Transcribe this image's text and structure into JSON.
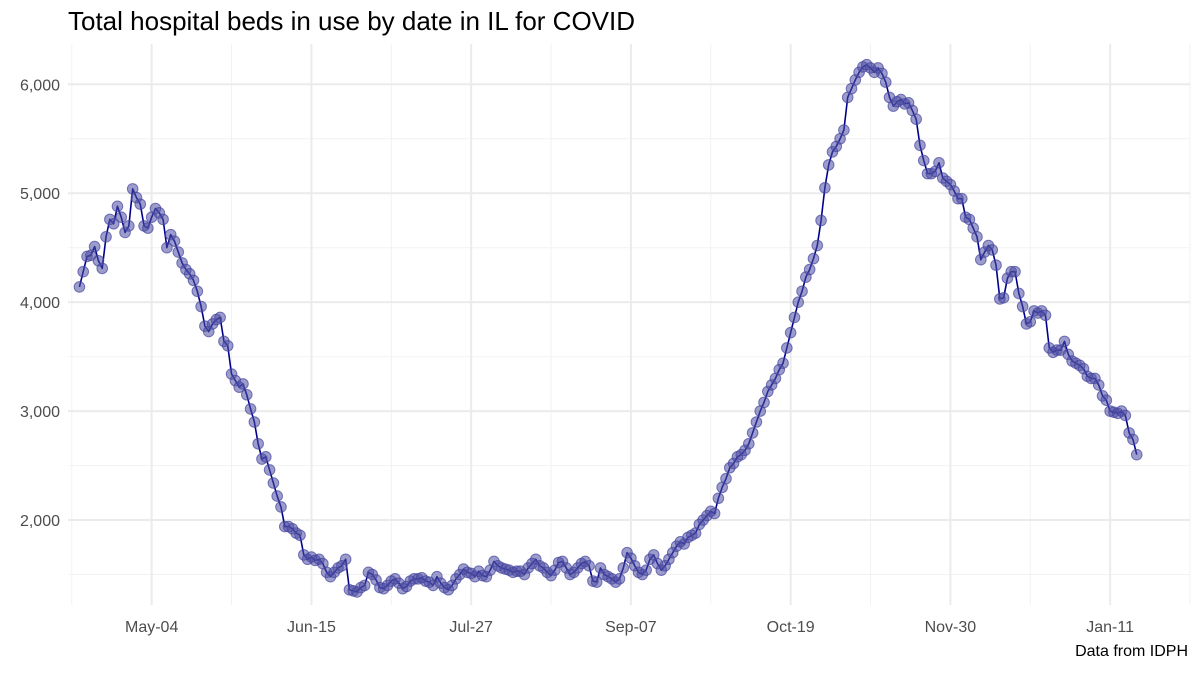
{
  "chart_data": {
    "type": "line",
    "title": "Total hospital beds in use by date in IL for COVID",
    "caption": "Data from IDPH",
    "xlabel": "",
    "ylabel": "",
    "x_start": "2020-04-15",
    "x_ticks": [
      {
        "date": "2020-05-04",
        "label": "May-04"
      },
      {
        "date": "2020-06-15",
        "label": "Jun-15"
      },
      {
        "date": "2020-07-27",
        "label": "Jul-27"
      },
      {
        "date": "2020-09-07",
        "label": "Sep-07"
      },
      {
        "date": "2020-10-19",
        "label": "Oct-19"
      },
      {
        "date": "2020-11-30",
        "label": "Nov-30"
      },
      {
        "date": "2021-01-11",
        "label": "Jan-11"
      }
    ],
    "y_ticks": [
      {
        "value": 2000,
        "label": "2,000"
      },
      {
        "value": 3000,
        "label": "3,000"
      },
      {
        "value": 4000,
        "label": "4,000"
      },
      {
        "value": 5000,
        "label": "5,000"
      },
      {
        "value": 6000,
        "label": "6,000"
      }
    ],
    "xlim": [
      "2020-04-12",
      "2021-02-01"
    ],
    "ylim": [
      1220,
      6370
    ],
    "grid": true,
    "series": [
      {
        "values": [
          4140,
          4280,
          4420,
          4430,
          4510,
          4380,
          4310,
          4600,
          4760,
          4720,
          4880,
          4780,
          4640,
          4700,
          5040,
          4960,
          4900,
          4700,
          4680,
          4780,
          4860,
          4820,
          4760,
          4500,
          4620,
          4560,
          4460,
          4360,
          4300,
          4260,
          4200,
          4100,
          3960,
          3780,
          3730,
          3800,
          3840,
          3860,
          3640,
          3600,
          3340,
          3280,
          3220,
          3250,
          3150,
          3020,
          2900,
          2700,
          2560,
          2580,
          2460,
          2340,
          2220,
          2120,
          1940,
          1940,
          1920,
          1880,
          1860,
          1680,
          1640,
          1660,
          1630,
          1640,
          1600,
          1520,
          1480,
          1520,
          1560,
          1580,
          1640,
          1360,
          1350,
          1340,
          1380,
          1400,
          1520,
          1500,
          1450,
          1380,
          1370,
          1400,
          1440,
          1460,
          1420,
          1370,
          1390,
          1440,
          1460,
          1460,
          1470,
          1440,
          1430,
          1400,
          1480,
          1420,
          1380,
          1360,
          1400,
          1460,
          1500,
          1550,
          1520,
          1510,
          1480,
          1530,
          1490,
          1480,
          1540,
          1620,
          1580,
          1560,
          1550,
          1540,
          1520,
          1530,
          1530,
          1500,
          1560,
          1600,
          1640,
          1580,
          1560,
          1520,
          1490,
          1540,
          1610,
          1620,
          1560,
          1500,
          1520,
          1560,
          1600,
          1620,
          1580,
          1440,
          1430,
          1560,
          1500,
          1480,
          1460,
          1430,
          1460,
          1560,
          1700,
          1650,
          1580,
          1520,
          1500,
          1540,
          1640,
          1680,
          1600,
          1540,
          1580,
          1640,
          1700,
          1760,
          1800,
          1780,
          1840,
          1860,
          1880,
          1960,
          2000,
          2040,
          2080,
          2060,
          2200,
          2300,
          2380,
          2480,
          2520,
          2580,
          2600,
          2640,
          2700,
          2800,
          2900,
          3000,
          3080,
          3180,
          3240,
          3300,
          3380,
          3440,
          3580,
          3720,
          3860,
          4000,
          4100,
          4230,
          4300,
          4400,
          4520,
          4750,
          5050,
          5260,
          5380,
          5430,
          5500,
          5580,
          5880,
          5960,
          6040,
          6110,
          6160,
          6180,
          6150,
          6110,
          6150,
          6100,
          6020,
          5880,
          5800,
          5840,
          5860,
          5820,
          5830,
          5760,
          5680,
          5440,
          5300,
          5180,
          5180,
          5200,
          5280,
          5140,
          5110,
          5080,
          5020,
          4950,
          4950,
          4780,
          4760,
          4680,
          4600,
          4390,
          4460,
          4520,
          4480,
          4340,
          4030,
          4040,
          4220,
          4280,
          4280,
          4080,
          3960,
          3800,
          3820,
          3920,
          3900,
          3920,
          3880,
          3580,
          3540,
          3560,
          3560,
          3640,
          3520,
          3460,
          3440,
          3420,
          3390,
          3320,
          3300,
          3300,
          3240,
          3140,
          3100,
          3000,
          2990,
          2980,
          3000,
          2960,
          2800,
          2740,
          2600
        ]
      }
    ],
    "colors": {
      "line": "#00008b",
      "point_fill": "#4c4ca3",
      "point_stroke": "#4545a0",
      "grid_major": "#ebebeb",
      "grid_minor": "#f2f2f2",
      "tick_text": "#4d4d4d",
      "background": "#ffffff"
    }
  }
}
